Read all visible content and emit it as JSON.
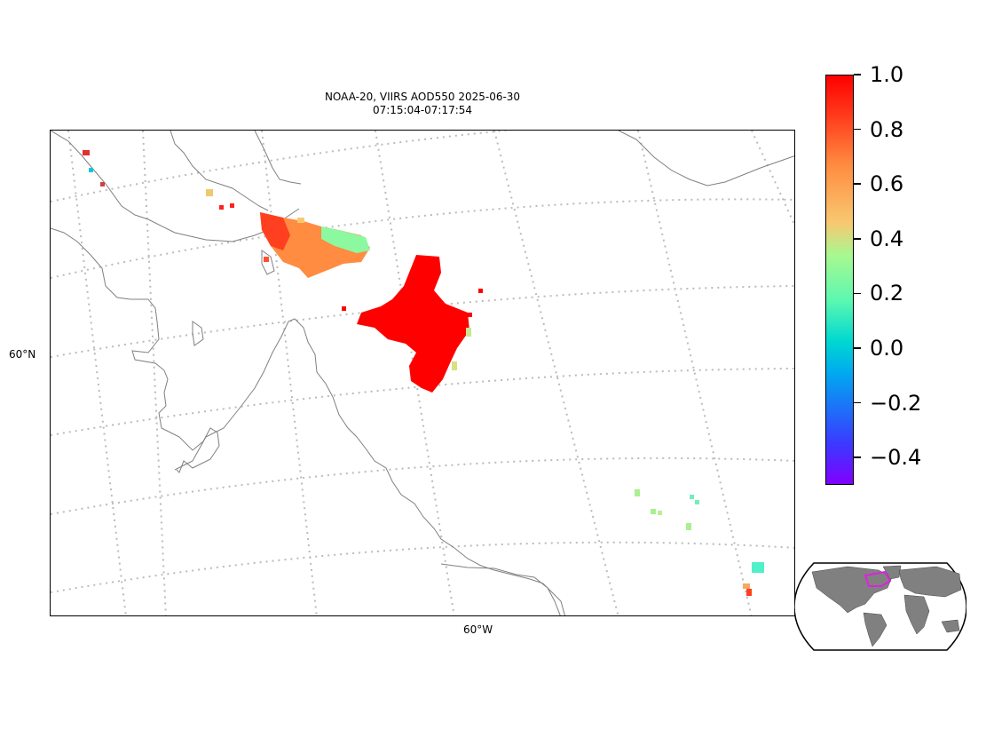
{
  "title": {
    "line1": "NOAA-20, VIIRS AOD550 2025-06-30",
    "line2": "07:15:04-07:17:54"
  },
  "axes": {
    "lat_label": "60°N",
    "lon_label": "60°W"
  },
  "colorbar": {
    "vmin": -0.5,
    "vmax": 1.0,
    "tick_labels": [
      "1.0",
      "0.8",
      "0.6",
      "0.4",
      "0.2",
      "0.0",
      "−0.2",
      "−0.4"
    ],
    "colormap": "rainbow"
  },
  "colors": {
    "coastline": "#808080",
    "graticule": "#bbbbbb",
    "land_inset": "#808080",
    "inset_box": "#e020e0",
    "high_aod": "#ff0000",
    "mid_aod": "#ff8c40",
    "low_aod": "#88f8a0"
  },
  "inset": {
    "projection": "world-robinson",
    "highlight": "region-box"
  }
}
